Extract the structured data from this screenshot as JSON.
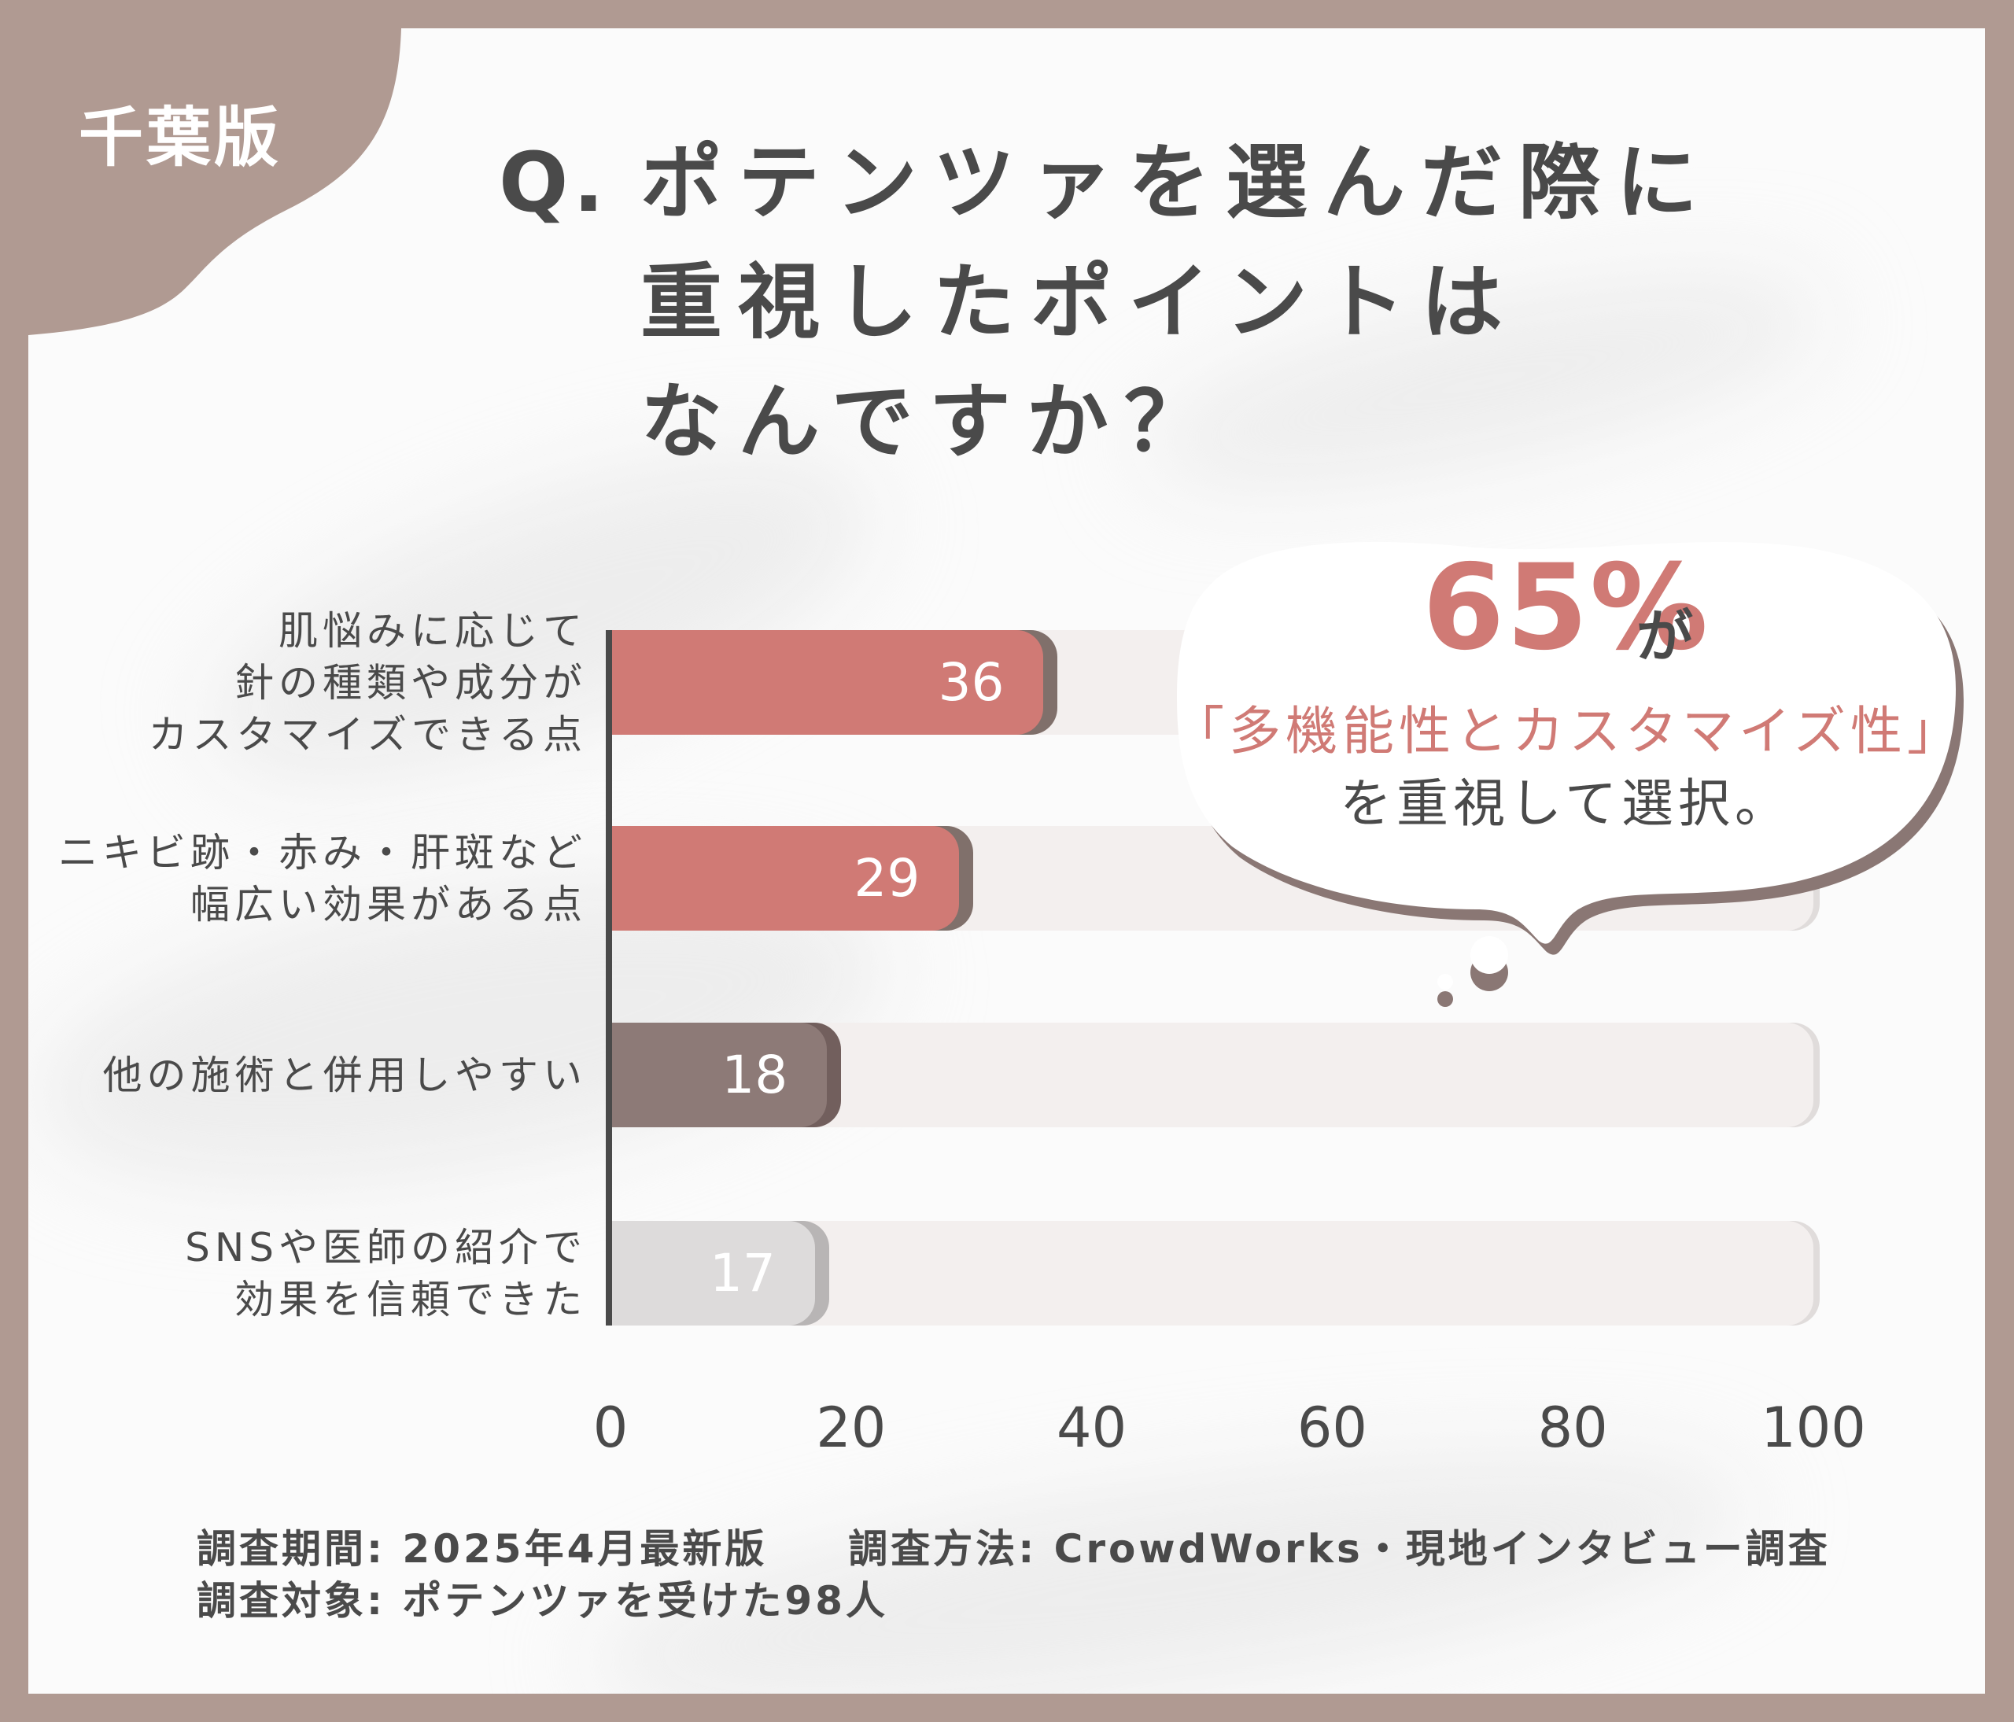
{
  "badge": {
    "text": "千葉版"
  },
  "title": {
    "prefix": "Q.",
    "lines": [
      "ポテンツァを選んだ際に",
      "重視したポイントは",
      "なんですか？"
    ]
  },
  "callout": {
    "percent": "65%",
    "particle": "が",
    "highlight": "「多機能性とカスタマイズ性」",
    "suffix": "を重視して選択。"
  },
  "footer": {
    "period_label": "調査期間:",
    "period_value": "2025年4月最新版",
    "method_label": "調査方法:",
    "method_value": "CrowdWorks・現地インタビュー調査",
    "target_label": "調査対象:",
    "target_value": "ポテンツァを受けた98人"
  },
  "colors": {
    "frame": "#b09a92",
    "accent_pink": "#d07a75",
    "bar_mauve": "#8d7a77",
    "bar_gray": "#dddbdb",
    "track": "#f3efee",
    "text": "#4a4a4a"
  },
  "chart_data": {
    "type": "bar",
    "orientation": "horizontal",
    "title": "Q. ポテンツァを選んだ際に重視したポイントはなんですか？",
    "categories": [
      "肌悩みに応じて針の種類や成分がカスタマイズできる点",
      "ニキビ跡・赤み・肝斑など幅広い効果がある点",
      "他の施術と併用しやすい",
      "SNSや医師の紹介で効果を信頼できた"
    ],
    "category_lines": [
      [
        "肌悩みに応じて",
        "針の種類や成分が",
        "カスタマイズできる点"
      ],
      [
        "ニキビ跡・赤み・肝斑など",
        "幅広い効果がある点"
      ],
      [
        "他の施術と併用しやすい"
      ],
      [
        "SNSや医師の紹介で",
        "効果を信頼できた"
      ]
    ],
    "values": [
      36,
      29,
      18,
      17
    ],
    "bar_colors": [
      "#d07a75",
      "#d07a75",
      "#8d7a77",
      "#dddbdb"
    ],
    "shadow_colors": [
      "#80706b",
      "#80706b",
      "#725f5d",
      "#b8b5b5"
    ],
    "xlabel": "",
    "ylabel": "",
    "xlim": [
      0,
      100
    ],
    "xticks": [
      0,
      20,
      40,
      60,
      80,
      100
    ],
    "grid": false,
    "legend": null,
    "annotation": "65%が「多機能性とカスタマイズ性」を重視して選択。"
  }
}
